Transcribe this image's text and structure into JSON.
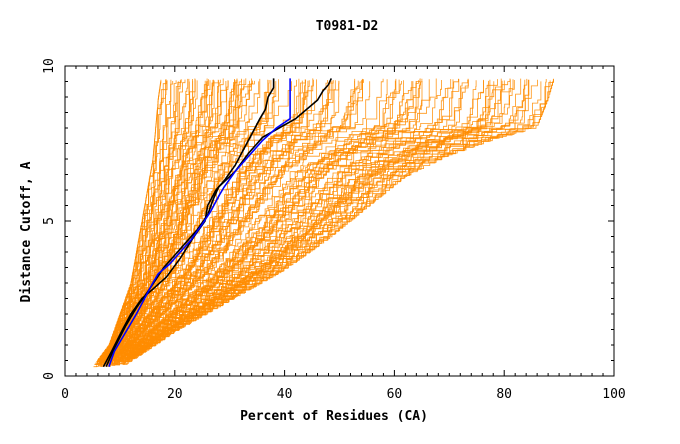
{
  "chart_data": {
    "type": "line",
    "title": "T0981-D2",
    "xlabel": "Percent of Residues (CA)",
    "ylabel": "Distance Cutoff, A",
    "xlim": [
      0,
      100
    ],
    "ylim": [
      0,
      10
    ],
    "x_ticks": [
      0,
      20,
      40,
      60,
      80,
      100
    ],
    "y_ticks": [
      0,
      5,
      10
    ],
    "grid": false,
    "legend": "none",
    "colors": {
      "background_models": "#ff8c00",
      "highlight_1": "#000000",
      "highlight_2": "#000000",
      "highlight_3": "#0000ff",
      "axis": "#000000"
    },
    "background_envelope": {
      "description_free": true,
      "count": 140,
      "min_curve": {
        "x": [
          5,
          8,
          10,
          12,
          13,
          14,
          15,
          16,
          16.5,
          17,
          17.5
        ],
        "y": [
          0.3,
          1.0,
          2.0,
          3.0,
          4.0,
          5.0,
          6.0,
          7.0,
          8.0,
          9.0,
          9.6
        ]
      },
      "max_curve": {
        "x": [
          10,
          20,
          30,
          40,
          48,
          55,
          62,
          70,
          78,
          86,
          88,
          89
        ],
        "y": [
          0.3,
          1.5,
          2.5,
          3.5,
          4.5,
          5.5,
          6.5,
          7.2,
          7.7,
          8.1,
          9.0,
          9.6
        ]
      }
    },
    "series": [
      {
        "color_key": "highlight_1",
        "x": [
          7.0,
          8.5,
          10.5,
          12.0,
          14.0,
          16.0,
          18.5,
          21.0,
          23.5,
          25.5,
          26.0,
          27.5,
          29.0,
          31.0,
          32.5,
          34.0,
          35.5,
          36.5,
          37.0,
          38.0,
          38.0
        ],
        "y": [
          0.3,
          0.8,
          1.5,
          2.0,
          2.5,
          2.8,
          3.2,
          3.8,
          4.5,
          5.0,
          5.5,
          6.0,
          6.3,
          6.8,
          7.3,
          7.8,
          8.3,
          8.6,
          9.0,
          9.3,
          9.6
        ]
      },
      {
        "color_key": "highlight_2",
        "x": [
          7.5,
          9.0,
          11.0,
          13.0,
          15.0,
          16.5,
          18.0,
          20.0,
          22.0,
          24.0,
          26.0,
          27.0,
          28.0,
          31.0,
          33.5,
          36.0,
          39.0,
          42.0,
          44.0,
          46.0,
          47.0,
          48.0,
          48.5
        ],
        "y": [
          0.3,
          0.9,
          1.6,
          2.2,
          2.7,
          3.1,
          3.5,
          3.9,
          4.3,
          4.7,
          5.2,
          5.7,
          6.1,
          6.6,
          7.2,
          7.7,
          8.0,
          8.3,
          8.6,
          8.9,
          9.2,
          9.4,
          9.6
        ]
      },
      {
        "color_key": "highlight_3",
        "x": [
          8.0,
          9.0,
          11.0,
          13.0,
          14.5,
          16.0,
          17.0,
          19.0,
          21.0,
          23.0,
          25.0,
          26.5,
          28.0,
          29.0,
          31.0,
          33.5,
          36.0,
          38.5,
          41.0,
          41.0
        ],
        "y": [
          0.3,
          0.8,
          1.4,
          2.0,
          2.5,
          3.0,
          3.3,
          3.6,
          4.0,
          4.4,
          4.9,
          5.3,
          5.8,
          6.1,
          6.6,
          7.1,
          7.6,
          8.0,
          8.3,
          9.6
        ]
      }
    ]
  }
}
